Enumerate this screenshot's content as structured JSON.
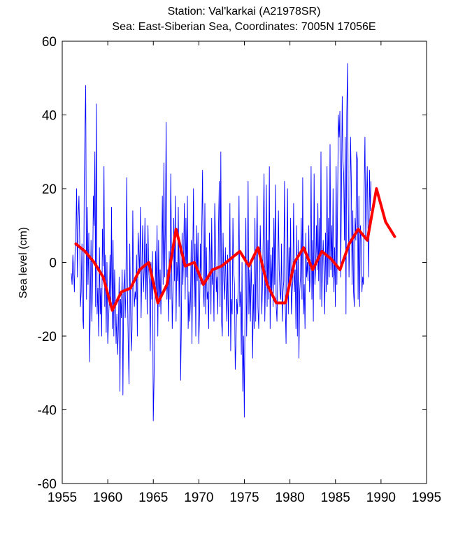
{
  "chart_data": {
    "type": "line",
    "title_lines": [
      "Station: Val'karkai   (A21978SR)",
      "Sea: East-Siberian Sea, Coordinates: 7005N 17056E"
    ],
    "xlabel": "",
    "ylabel": "Sea level (cm)",
    "xlim": [
      1955,
      1995
    ],
    "ylim": [
      -60,
      60
    ],
    "xticks": [
      1955,
      1960,
      1965,
      1970,
      1975,
      1980,
      1985,
      1990,
      1995
    ],
    "yticks": [
      -60,
      -40,
      -20,
      0,
      20,
      40,
      60
    ],
    "grid": false,
    "colors": {
      "monthly": "#0000ff",
      "annual": "#ff0000"
    },
    "series": [
      {
        "style": "thin-line",
        "x_start": 1956.0,
        "x_step": 0.0833,
        "values": [
          -3,
          -6,
          2,
          -2,
          -8,
          3,
          8,
          20,
          -4,
          12,
          18,
          6,
          -12,
          -8,
          5,
          -15,
          -18,
          22,
          37,
          48,
          -10,
          15,
          -6,
          8,
          -27,
          -12,
          6,
          -16,
          -5,
          18,
          10,
          30,
          -12,
          43,
          -14,
          -7,
          -20,
          4,
          -14,
          -7,
          -20,
          9,
          -1,
          26,
          -12,
          2,
          -19,
          0,
          -22,
          -16,
          -10,
          2,
          -12,
          15,
          -18,
          6,
          -20,
          -2,
          -10,
          -22,
          -14,
          -25,
          -18,
          -4,
          -35,
          -10,
          -15,
          -2,
          -36,
          -8,
          -2,
          -15,
          -6,
          23,
          -8,
          -22,
          -33,
          5,
          -12,
          -24,
          -18,
          14,
          -6,
          -12,
          -8,
          -10,
          2,
          -20,
          8,
          3,
          -3,
          15,
          -15,
          -2,
          10,
          -8,
          -2,
          12,
          -10,
          5,
          -14,
          10,
          -2,
          -6,
          -24,
          0,
          -10,
          3,
          -43,
          -32,
          -15,
          3,
          -8,
          10,
          -20,
          6,
          -12,
          -2,
          -14,
          0,
          18,
          -6,
          27,
          -4,
          10,
          38,
          -10,
          -2,
          -16,
          3,
          -10,
          24,
          5,
          -18,
          -8,
          12,
          -5,
          18,
          -16,
          0,
          -5,
          15,
          -12,
          5,
          -32,
          -18,
          8,
          -6,
          2,
          16,
          -10,
          12,
          -4,
          18,
          -18,
          -8,
          -16,
          -10,
          6,
          -22,
          0,
          20,
          -12,
          5,
          -20,
          10,
          -5,
          8,
          -22,
          -14,
          5,
          -6,
          10,
          25,
          -8,
          -12,
          16,
          -14,
          4,
          -10,
          -8,
          -18,
          8,
          2,
          -14,
          12,
          -6,
          -2,
          -16,
          16,
          6,
          -8,
          -4,
          -14,
          10,
          22,
          -12,
          30,
          -16,
          -20,
          8,
          -5,
          -10,
          4,
          -8,
          -16,
          2,
          -20,
          -6,
          16,
          -24,
          -10,
          -14,
          12,
          -2,
          -6,
          -29,
          -22,
          -10,
          -14,
          -6,
          18,
          -12,
          -8,
          -25,
          0,
          -35,
          -20,
          -42,
          -10,
          12,
          -20,
          -8,
          22,
          -14,
          -2,
          -16,
          0,
          -10,
          -26,
          -6,
          -18,
          12,
          -16,
          4,
          18,
          -12,
          -18,
          -5,
          10,
          -2,
          -14,
          -6,
          8,
          24,
          -16,
          -4,
          21,
          -12,
          6,
          -10,
          26,
          -18,
          2,
          -8,
          4,
          -12,
          12,
          -6,
          21,
          -12,
          -16,
          -4,
          14,
          -2,
          -8,
          -10,
          5,
          -16,
          -8,
          -5,
          22,
          -12,
          -22,
          2,
          20,
          -14,
          4,
          -6,
          12,
          -14,
          -8,
          -5,
          16,
          -8,
          -2,
          -18,
          10,
          -20,
          6,
          -26,
          -8,
          -4,
          12,
          -10,
          23,
          -14,
          -6,
          -18,
          8,
          -4,
          0,
          -5,
          10,
          -8,
          -4,
          26,
          -10,
          6,
          -16,
          24,
          -6,
          -2,
          10,
          -2,
          16,
          -5,
          12,
          -10,
          30,
          -12,
          -1,
          6,
          -2,
          -14,
          8,
          -8,
          26,
          -6,
          12,
          -4,
          32,
          -2,
          10,
          -4,
          20,
          -8,
          4,
          -12,
          26,
          -6,
          18,
          40,
          34,
          41,
          -4,
          18,
          45,
          28,
          24,
          6,
          34,
          -14,
          40,
          54,
          18,
          -4,
          8,
          34,
          22,
          -6,
          14,
          -8,
          -12,
          12,
          6,
          30,
          28,
          -10,
          18,
          -12,
          10,
          6,
          -8,
          -4,
          -6,
          20,
          34,
          6,
          16,
          26,
          9,
          -4,
          25,
          14,
          22
        ]
      },
      {
        "style": "thick-line",
        "x": [
          1956.5,
          1957.5,
          1958.5,
          1959.5,
          1960.5,
          1961.5,
          1962.5,
          1963.5,
          1964.5,
          1965.5,
          1966.5,
          1967.5,
          1968.5,
          1969.5,
          1970.5,
          1971.5,
          1972.5,
          1973.5,
          1974.5,
          1975.5,
          1976.5,
          1977.5,
          1978.5,
          1979.5,
          1980.5,
          1981.5,
          1982.5,
          1983.5,
          1984.5,
          1985.5,
          1986.5,
          1987.5,
          1988.5,
          1989.5,
          1990.5,
          1991.5
        ],
        "values": [
          5,
          3,
          0,
          -4,
          -13,
          -8,
          -7,
          -2,
          0,
          -11,
          -6,
          9,
          -1,
          0,
          -6,
          -2,
          -1,
          1,
          3,
          -1,
          4,
          -6,
          -11,
          -11,
          0,
          4,
          -2,
          3,
          1,
          -2,
          5,
          9,
          6,
          20,
          11,
          7
        ]
      }
    ]
  }
}
